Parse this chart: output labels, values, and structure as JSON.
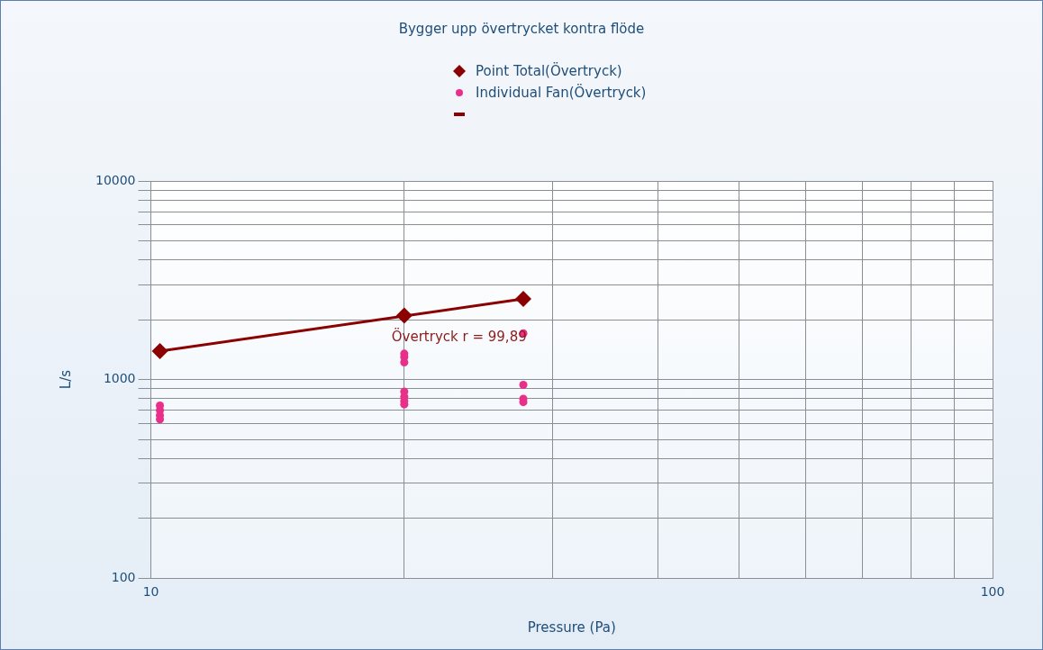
{
  "chart_data": {
    "type": "scatter",
    "title": "Bygger upp övertrycket kontra flöde",
    "xlabel": "Pressure (Pa)",
    "ylabel": "L/s",
    "log": "xy",
    "grid": true,
    "legend": "top",
    "xlim": [
      10,
      100
    ],
    "xticks": [
      10,
      {
        "value": 20,
        "label": null
      },
      {
        "value": 30,
        "label": null
      },
      {
        "value": 40,
        "label": null
      },
      {
        "value": 50,
        "label": null
      },
      {
        "value": 60,
        "label": null
      },
      {
        "value": 70,
        "label": null
      },
      {
        "value": 80,
        "label": null
      },
      {
        "value": 90,
        "label": null
      },
      100
    ],
    "ylim": [
      100,
      10000
    ],
    "yticks": [
      100,
      {
        "value": 200,
        "label": null
      },
      {
        "value": 300,
        "label": null
      },
      {
        "value": 400,
        "label": null
      },
      {
        "value": 500,
        "label": null
      },
      {
        "value": 600,
        "label": null
      },
      {
        "value": 700,
        "label": null
      },
      {
        "value": 800,
        "label": null
      },
      {
        "value": 900,
        "label": null
      },
      1000,
      {
        "value": 2000,
        "label": null
      },
      {
        "value": 3000,
        "label": null
      },
      {
        "value": 4000,
        "label": null
      },
      {
        "value": 5000,
        "label": null
      },
      {
        "value": 6000,
        "label": null
      },
      {
        "value": 7000,
        "label": null
      },
      {
        "value": 8000,
        "label": null
      },
      {
        "value": 9000,
        "label": null
      },
      10000
    ],
    "series": [
      {
        "name": "Point Total(Övertryck)",
        "type": "scatter",
        "marker": "diamond",
        "color": "#8b0000",
        "x": [
          10.25,
          20,
          27.7
        ],
        "values": [
          1390,
          2100,
          2550
        ]
      },
      {
        "name": "Individual Fan(Övertryck)",
        "type": "scatter",
        "marker": "circle",
        "color": "#e8308a",
        "x": [
          10.25,
          10.25,
          10.25,
          10.25,
          20,
          20,
          20,
          20,
          20,
          20,
          20,
          27.7,
          27.7,
          27.7,
          27.7
        ],
        "values": [
          740,
          700,
          660,
          630,
          1350,
          1300,
          1220,
          870,
          820,
          780,
          750,
          1710,
          940,
          800,
          770
        ]
      },
      {
        "type": "line",
        "marker": "none",
        "color": "#8b0000",
        "x": [
          10.25,
          27.7
        ],
        "values": [
          1390,
          2550
        ]
      }
    ],
    "annotations": [
      "Övertryck r = 99,89"
    ]
  }
}
